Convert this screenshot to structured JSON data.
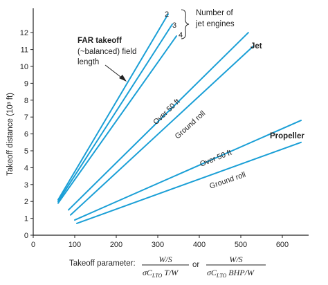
{
  "chart_data": {
    "type": "line",
    "xlabel": "Takeoff parameter:",
    "xlabel_formula_1": {
      "numerator": "W/S",
      "denominator": "σC",
      "sub": "LTO",
      "denominator_tail": " T/W"
    },
    "xlabel_or": "or",
    "xlabel_formula_2": {
      "numerator": "W/S",
      "denominator": "σC",
      "sub": "LTO",
      "denominator_tail": " BHP/W"
    },
    "ylabel": "Takeoff distance (10³ ft)",
    "xlim": [
      0,
      650
    ],
    "ylim": [
      0,
      12.7
    ],
    "x_ticks": [
      0,
      100,
      200,
      300,
      400,
      500,
      600
    ],
    "y_ticks": [
      0,
      1,
      2,
      3,
      4,
      5,
      6,
      7,
      8,
      9,
      10,
      11,
      12
    ],
    "line_color": "#1a9fd6",
    "series": [
      {
        "name": "2",
        "group": "FAR takeoff",
        "points": [
          [
            60,
            2.1
          ],
          [
            325,
            13.1
          ]
        ]
      },
      {
        "name": "3",
        "group": "FAR takeoff",
        "points": [
          [
            60,
            2.0
          ],
          [
            335,
            12.5
          ]
        ]
      },
      {
        "name": "4",
        "group": "FAR takeoff",
        "points": [
          [
            60,
            1.9
          ],
          [
            345,
            11.8
          ]
        ]
      },
      {
        "name": "Over 50 ft",
        "group": "Jet",
        "points": [
          [
            85,
            1.5
          ],
          [
            518,
            12.0
          ]
        ]
      },
      {
        "name": "Ground roll",
        "group": "Jet",
        "points": [
          [
            90,
            1.2
          ],
          [
            530,
            11.2
          ]
        ]
      },
      {
        "name": "Over 50 ft",
        "group": "Propeller",
        "points": [
          [
            100,
            0.9
          ],
          [
            645,
            6.8
          ]
        ]
      },
      {
        "name": "Ground roll",
        "group": "Propeller",
        "points": [
          [
            105,
            0.7
          ],
          [
            645,
            5.5
          ]
        ]
      }
    ],
    "annotations": {
      "engine_header": [
        "Number of",
        "jet engines"
      ],
      "far_label": "FAR takeoff",
      "far_sub": [
        "(~balanced) field",
        "length"
      ],
      "jet_label": "Jet",
      "propeller_label": "Propeller",
      "jet_over": "Over 50 ft",
      "jet_ground": "Ground roll",
      "prop_over": "Over 50 ft",
      "prop_ground": "Ground roll"
    }
  }
}
